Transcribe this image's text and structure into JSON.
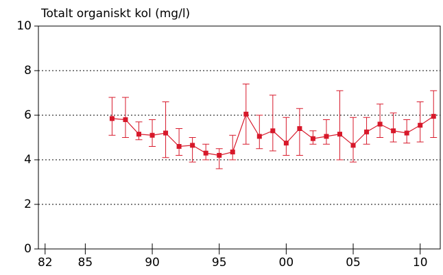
{
  "chart_data": {
    "type": "errorbar-line",
    "title": "Totalt organiskt kol (mg/l)",
    "x": [
      1987,
      1988,
      1989,
      1990,
      1991,
      1992,
      1993,
      1994,
      1995,
      1996,
      1997,
      1998,
      1999,
      2000,
      2001,
      2002,
      2003,
      2004,
      2005,
      2006,
      2007,
      2008,
      2009,
      2010,
      2011
    ],
    "values": [
      5.85,
      5.8,
      5.15,
      5.1,
      5.2,
      4.6,
      4.65,
      4.3,
      4.2,
      4.35,
      6.05,
      5.05,
      5.3,
      4.75,
      5.4,
      4.95,
      5.05,
      5.15,
      4.65,
      5.25,
      5.6,
      5.3,
      5.2,
      5.55,
      5.95
    ],
    "lower": [
      5.1,
      5.0,
      4.9,
      4.6,
      4.1,
      4.2,
      3.9,
      4.0,
      3.6,
      4.0,
      4.7,
      4.5,
      4.4,
      4.2,
      4.2,
      4.7,
      4.7,
      4.0,
      3.9,
      4.7,
      5.0,
      4.8,
      4.75,
      4.8,
      5.0
    ],
    "upper": [
      6.8,
      6.8,
      5.7,
      5.8,
      6.6,
      5.4,
      5.0,
      4.7,
      4.5,
      5.1,
      7.4,
      6.0,
      6.9,
      5.9,
      6.3,
      5.3,
      5.8,
      7.1,
      5.9,
      5.9,
      6.5,
      6.1,
      5.8,
      6.6,
      7.1
    ],
    "color": "#d7182a",
    "xlim": [
      1981.5,
      2011.5
    ],
    "xticks": [
      {
        "value": 1982,
        "label": "82"
      },
      {
        "value": 1985,
        "label": "85"
      },
      {
        "value": 1990,
        "label": "90"
      },
      {
        "value": 1995,
        "label": "95"
      },
      {
        "value": 2000,
        "label": "00"
      },
      {
        "value": 2005,
        "label": "05"
      },
      {
        "value": 2010,
        "label": "10"
      }
    ],
    "ylim": [
      0,
      10
    ],
    "yticks": [
      0,
      2,
      4,
      6,
      8,
      10
    ],
    "grid": true
  }
}
